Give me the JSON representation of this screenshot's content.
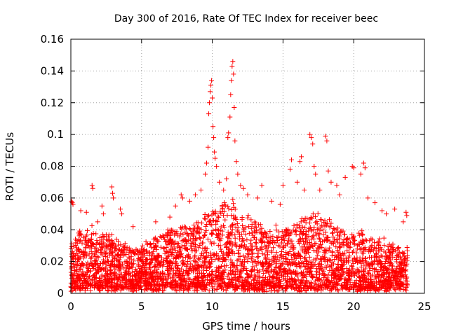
{
  "chart_data": {
    "type": "scatter",
    "title": "Day 300 of 2016, Rate Of TEC Index for receiver beec",
    "xlabel": "GPS time / hours",
    "ylabel": "ROTI / TECUs",
    "xlim": [
      0,
      25
    ],
    "ylim": [
      0,
      0.16
    ],
    "x_ticks": [
      0,
      5,
      10,
      15,
      20,
      25
    ],
    "x_tick_labels": [
      "0",
      "5",
      "10",
      "15",
      "20",
      "25"
    ],
    "y_ticks": [
      0,
      0.02,
      0.04,
      0.06,
      0.08,
      0.1,
      0.12,
      0.14,
      0.16
    ],
    "y_tick_labels": [
      "0",
      "0.02",
      "0.04",
      "0.06",
      "0.08",
      "0.1",
      "0.12",
      "0.14",
      "0.16"
    ],
    "grid": true,
    "marker": "+",
    "series_color": "#ff0000",
    "x_data_range": [
      0,
      23.8
    ],
    "envelope": {
      "description_hours": "approximate upper extent of dense ROTI scatter by hour",
      "hours": [
        0,
        0.5,
        1,
        1.5,
        2,
        2.5,
        3,
        3.5,
        4,
        4.5,
        5,
        5.5,
        6,
        6.5,
        7,
        7.5,
        8,
        8.5,
        9,
        9.5,
        10,
        10.5,
        11,
        11.5,
        12,
        12.5,
        13,
        13.5,
        14,
        14.5,
        15,
        15.5,
        16,
        16.5,
        17,
        17.5,
        18,
        18.5,
        19,
        19.5,
        20,
        20.5,
        21,
        21.5,
        22,
        22.5,
        23,
        23.5,
        23.8
      ],
      "upper": [
        0.03,
        0.04,
        0.038,
        0.042,
        0.036,
        0.04,
        0.035,
        0.032,
        0.03,
        0.028,
        0.03,
        0.032,
        0.034,
        0.038,
        0.04,
        0.042,
        0.045,
        0.042,
        0.045,
        0.05,
        0.055,
        0.052,
        0.06,
        0.058,
        0.05,
        0.048,
        0.045,
        0.043,
        0.04,
        0.042,
        0.04,
        0.042,
        0.045,
        0.048,
        0.05,
        0.052,
        0.048,
        0.045,
        0.04,
        0.038,
        0.036,
        0.04,
        0.035,
        0.033,
        0.035,
        0.032,
        0.03,
        0.028,
        0.028
      ]
    },
    "outliers": [
      {
        "x": 0.05,
        "y": 0.058
      },
      {
        "x": 0.1,
        "y": 0.057
      },
      {
        "x": 0.15,
        "y": 0.056
      },
      {
        "x": 0.7,
        "y": 0.052
      },
      {
        "x": 1.1,
        "y": 0.051
      },
      {
        "x": 1.5,
        "y": 0.068
      },
      {
        "x": 1.55,
        "y": 0.066
      },
      {
        "x": 1.9,
        "y": 0.045
      },
      {
        "x": 2.2,
        "y": 0.055
      },
      {
        "x": 2.3,
        "y": 0.05
      },
      {
        "x": 2.9,
        "y": 0.067
      },
      {
        "x": 2.95,
        "y": 0.063
      },
      {
        "x": 3.0,
        "y": 0.06
      },
      {
        "x": 3.5,
        "y": 0.053
      },
      {
        "x": 3.6,
        "y": 0.05
      },
      {
        "x": 4.4,
        "y": 0.042
      },
      {
        "x": 6.0,
        "y": 0.045
      },
      {
        "x": 7.0,
        "y": 0.048
      },
      {
        "x": 7.4,
        "y": 0.055
      },
      {
        "x": 7.8,
        "y": 0.062
      },
      {
        "x": 7.9,
        "y": 0.06
      },
      {
        "x": 8.4,
        "y": 0.058
      },
      {
        "x": 8.8,
        "y": 0.062
      },
      {
        "x": 9.2,
        "y": 0.065
      },
      {
        "x": 9.5,
        "y": 0.075
      },
      {
        "x": 9.6,
        "y": 0.082
      },
      {
        "x": 9.7,
        "y": 0.092
      },
      {
        "x": 9.75,
        "y": 0.113
      },
      {
        "x": 9.8,
        "y": 0.12
      },
      {
        "x": 9.85,
        "y": 0.127
      },
      {
        "x": 9.9,
        "y": 0.131
      },
      {
        "x": 9.95,
        "y": 0.134
      },
      {
        "x": 10.0,
        "y": 0.123
      },
      {
        "x": 10.05,
        "y": 0.105
      },
      {
        "x": 10.1,
        "y": 0.098
      },
      {
        "x": 10.15,
        "y": 0.089
      },
      {
        "x": 10.2,
        "y": 0.085
      },
      {
        "x": 10.3,
        "y": 0.08
      },
      {
        "x": 10.5,
        "y": 0.07
      },
      {
        "x": 10.8,
        "y": 0.065
      },
      {
        "x": 11.0,
        "y": 0.072
      },
      {
        "x": 11.1,
        "y": 0.098
      },
      {
        "x": 11.15,
        "y": 0.101
      },
      {
        "x": 11.25,
        "y": 0.111
      },
      {
        "x": 11.3,
        "y": 0.125
      },
      {
        "x": 11.35,
        "y": 0.134
      },
      {
        "x": 11.4,
        "y": 0.143
      },
      {
        "x": 11.45,
        "y": 0.146
      },
      {
        "x": 11.5,
        "y": 0.138
      },
      {
        "x": 11.55,
        "y": 0.117
      },
      {
        "x": 11.6,
        "y": 0.096
      },
      {
        "x": 11.7,
        "y": 0.083
      },
      {
        "x": 11.8,
        "y": 0.075
      },
      {
        "x": 12.0,
        "y": 0.068
      },
      {
        "x": 12.2,
        "y": 0.066
      },
      {
        "x": 12.5,
        "y": 0.062
      },
      {
        "x": 13.2,
        "y": 0.06
      },
      {
        "x": 13.5,
        "y": 0.068
      },
      {
        "x": 14.2,
        "y": 0.058
      },
      {
        "x": 14.8,
        "y": 0.056
      },
      {
        "x": 15.0,
        "y": 0.068
      },
      {
        "x": 15.5,
        "y": 0.078
      },
      {
        "x": 15.6,
        "y": 0.084
      },
      {
        "x": 16.0,
        "y": 0.07
      },
      {
        "x": 16.2,
        "y": 0.083
      },
      {
        "x": 16.3,
        "y": 0.086
      },
      {
        "x": 16.5,
        "y": 0.065
      },
      {
        "x": 16.9,
        "y": 0.1
      },
      {
        "x": 17.0,
        "y": 0.098
      },
      {
        "x": 17.1,
        "y": 0.094
      },
      {
        "x": 17.2,
        "y": 0.08
      },
      {
        "x": 17.3,
        "y": 0.075
      },
      {
        "x": 17.6,
        "y": 0.065
      },
      {
        "x": 18.0,
        "y": 0.099
      },
      {
        "x": 18.1,
        "y": 0.096
      },
      {
        "x": 18.2,
        "y": 0.077
      },
      {
        "x": 18.4,
        "y": 0.07
      },
      {
        "x": 18.8,
        "y": 0.068
      },
      {
        "x": 19.0,
        "y": 0.062
      },
      {
        "x": 19.4,
        "y": 0.073
      },
      {
        "x": 19.9,
        "y": 0.08
      },
      {
        "x": 20.0,
        "y": 0.079
      },
      {
        "x": 20.5,
        "y": 0.075
      },
      {
        "x": 20.7,
        "y": 0.082
      },
      {
        "x": 20.8,
        "y": 0.079
      },
      {
        "x": 21.0,
        "y": 0.06
      },
      {
        "x": 21.5,
        "y": 0.057
      },
      {
        "x": 22.0,
        "y": 0.052
      },
      {
        "x": 22.3,
        "y": 0.05
      },
      {
        "x": 22.9,
        "y": 0.053
      },
      {
        "x": 23.5,
        "y": 0.045
      },
      {
        "x": 23.7,
        "y": 0.051
      },
      {
        "x": 23.75,
        "y": 0.049
      }
    ]
  }
}
